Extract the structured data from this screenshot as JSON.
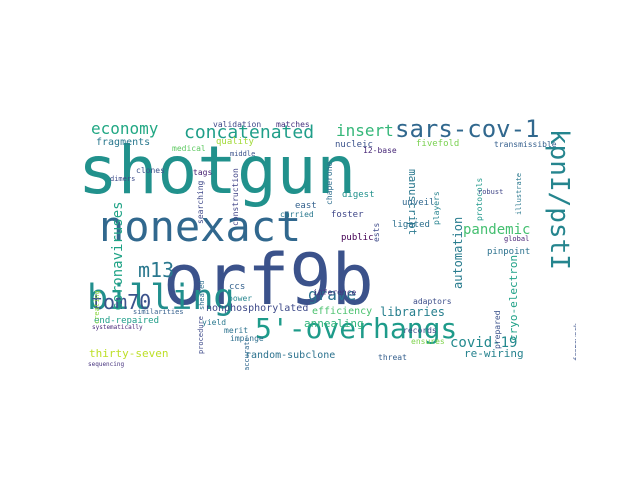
{
  "words": [
    {
      "text": "shotgun",
      "color": "#21918c"
    },
    {
      "text": "orf9b",
      "color": "#3b528b"
    },
    {
      "text": "nonexact",
      "color": "#31688e"
    },
    {
      "text": "billing",
      "color": "#218f8d"
    },
    {
      "text": "5'-overhangs",
      "color": "#1e9b8a"
    },
    {
      "text": "sars-cov-1",
      "color": "#31688e"
    },
    {
      "text": "kpnI/pstI",
      "color": "#25858e"
    },
    {
      "text": "concatenated",
      "color": "#1f9e89"
    },
    {
      "text": "tom70",
      "color": "#3b528b"
    },
    {
      "text": "economy",
      "color": "#22a884"
    },
    {
      "text": "m13",
      "color": "#2a788e"
    },
    {
      "text": "coronaviruses",
      "color": "#20a386"
    },
    {
      "text": "insert",
      "color": "#35b779"
    },
    {
      "text": "pandemic",
      "color": "#44bf70"
    },
    {
      "text": "covid-19",
      "color": "#23898e"
    },
    {
      "text": "grave",
      "color": "#2c718e"
    },
    {
      "text": "automation",
      "color": "#287c8e"
    },
    {
      "text": "cryo-electron",
      "color": "#1fa187"
    },
    {
      "text": "manuscript",
      "color": "#2a788e"
    },
    {
      "text": "annealing",
      "color": "#31b57b"
    },
    {
      "text": "libraries",
      "color": "#277f8e"
    },
    {
      "text": "re-wiring",
      "color": "#26828e"
    },
    {
      "text": "nonphosphorylated",
      "color": "#3e4a89"
    },
    {
      "text": "efficiency",
      "color": "#4ac16d"
    },
    {
      "text": "random-subclone",
      "color": "#2c728e"
    },
    {
      "text": "thirty-seven",
      "color": "#bddf26"
    },
    {
      "text": "end-repaired",
      "color": "#1f9e89"
    },
    {
      "text": "fragments",
      "color": "#2a788e"
    },
    {
      "text": "validation",
      "color": "#3e4989"
    },
    {
      "text": "matches",
      "color": "#46327e"
    },
    {
      "text": "12-base",
      "color": "#482878"
    },
    {
      "text": "nucleic",
      "color": "#3b528b"
    },
    {
      "text": "fivefold",
      "color": "#7ad151"
    },
    {
      "text": "transmissible",
      "color": "#355f8d"
    },
    {
      "text": "quality",
      "color": "#a2da37"
    },
    {
      "text": "construction",
      "color": "#414487"
    },
    {
      "text": "chaperone",
      "color": "#2e6e8e"
    },
    {
      "text": "searching",
      "color": "#3f4889"
    },
    {
      "text": "unveil",
      "color": "#31688e"
    },
    {
      "text": "digest",
      "color": "#21918c"
    },
    {
      "text": "players",
      "color": "#26828e"
    },
    {
      "text": "ests",
      "color": "#3e4a89"
    },
    {
      "text": "ligated",
      "color": "#2d708e"
    },
    {
      "text": "protocols",
      "color": "#1f988b"
    },
    {
      "text": "robust",
      "color": "#404688"
    },
    {
      "text": "illustrate",
      "color": "#2a788e"
    },
    {
      "text": "pinpoint",
      "color": "#2c728e"
    },
    {
      "text": "global",
      "color": "#482475"
    },
    {
      "text": "framework",
      "color": "#3b528b"
    },
    {
      "text": "public",
      "color": "#440154"
    },
    {
      "text": "east",
      "color": "#34618d"
    },
    {
      "text": "foster",
      "color": "#3f4788"
    },
    {
      "text": "inference",
      "color": "#46327e"
    },
    {
      "text": "carried",
      "color": "#2a788e"
    },
    {
      "text": "prepared",
      "color": "#3b528b"
    },
    {
      "text": "ensures",
      "color": "#7fd34e"
    },
    {
      "text": "records",
      "color": "#3e4989"
    },
    {
      "text": "threat",
      "color": "#355f8d"
    },
    {
      "text": "adaptors",
      "color": "#3d4e8a"
    },
    {
      "text": "tags",
      "color": "#482173"
    },
    {
      "text": "clones",
      "color": "#3b528b"
    },
    {
      "text": "medical",
      "color": "#5ec962"
    },
    {
      "text": "sheared",
      "color": "#2e6e8e"
    },
    {
      "text": "ccs",
      "color": "#34618d"
    },
    {
      "text": "merit",
      "color": "#2c728e"
    },
    {
      "text": "power",
      "color": "#25858e"
    },
    {
      "text": "accurate",
      "color": "#31688e"
    },
    {
      "text": "impinge",
      "color": "#2e6f8e"
    },
    {
      "text": "yield",
      "color": "#2a788e"
    },
    {
      "text": "middle",
      "color": "#3b528b"
    },
    {
      "text": "procedure",
      "color": "#3e4a89"
    },
    {
      "text": "creating",
      "color": "#8fd744"
    },
    {
      "text": "similarities",
      "color": "#355f8d"
    },
    {
      "text": "systematically",
      "color": "#482878"
    },
    {
      "text": "dimers",
      "color": "#3e4c8a"
    },
    {
      "text": "sequencing",
      "color": "#46337e"
    }
  ]
}
